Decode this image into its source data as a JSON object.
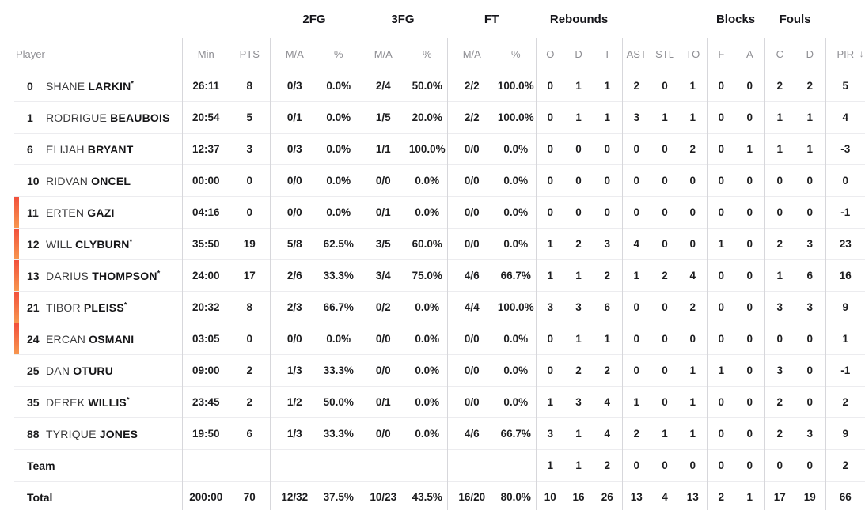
{
  "colors": {
    "accent_top": "#f2503c",
    "accent_bottom": "#f7974f",
    "divider": "#d7d7db",
    "row_line": "#ececef"
  },
  "header": {
    "groups": [
      {
        "label": "",
        "span": 3
      },
      {
        "label": "2FG",
        "span": 2
      },
      {
        "label": "3FG",
        "span": 2
      },
      {
        "label": "FT",
        "span": 2
      },
      {
        "label": "Rebounds",
        "span": 3
      },
      {
        "label": "",
        "span": 3
      },
      {
        "label": "Blocks",
        "span": 2
      },
      {
        "label": "Fouls",
        "span": 2
      },
      {
        "label": "",
        "span": 1
      }
    ],
    "sub": {
      "player": "Player",
      "min": "Min",
      "pts": "PTS",
      "fg2_ma": "M/A",
      "fg2_pct": "%",
      "fg3_ma": "M/A",
      "fg3_pct": "%",
      "ft_ma": "M/A",
      "ft_pct": "%",
      "reb_o": "O",
      "reb_d": "D",
      "reb_t": "T",
      "ast": "AST",
      "stl": "STL",
      "to": "TO",
      "blk_f": "F",
      "blk_a": "A",
      "foul_c": "C",
      "foul_d": "D",
      "pir": "PIR"
    },
    "sort_icon": "↓"
  },
  "rows": [
    {
      "type": "player",
      "num": "0",
      "first": "SHANE",
      "last": "LARKIN",
      "starter": true,
      "oncourt": false,
      "min": "26:11",
      "pts": "8",
      "fg2": "0/3",
      "fg2p": "0.0%",
      "fg3": "2/4",
      "fg3p": "50.0%",
      "ft": "2/2",
      "ftp": "100.0%",
      "ro": "0",
      "rd": "1",
      "rt": "1",
      "ast": "2",
      "stl": "0",
      "to": "1",
      "bf": "0",
      "ba": "0",
      "fc": "2",
      "fd": "2",
      "pir": "5"
    },
    {
      "type": "player",
      "num": "1",
      "first": "RODRIGUE",
      "last": "BEAUBOIS",
      "starter": false,
      "oncourt": false,
      "min": "20:54",
      "pts": "5",
      "fg2": "0/1",
      "fg2p": "0.0%",
      "fg3": "1/5",
      "fg3p": "20.0%",
      "ft": "2/2",
      "ftp": "100.0%",
      "ro": "0",
      "rd": "1",
      "rt": "1",
      "ast": "3",
      "stl": "1",
      "to": "1",
      "bf": "0",
      "ba": "0",
      "fc": "1",
      "fd": "1",
      "pir": "4"
    },
    {
      "type": "player",
      "num": "6",
      "first": "ELIJAH",
      "last": "BRYANT",
      "starter": false,
      "oncourt": false,
      "min": "12:37",
      "pts": "3",
      "fg2": "0/3",
      "fg2p": "0.0%",
      "fg3": "1/1",
      "fg3p": "100.0%",
      "ft": "0/0",
      "ftp": "0.0%",
      "ro": "0",
      "rd": "0",
      "rt": "0",
      "ast": "0",
      "stl": "0",
      "to": "2",
      "bf": "0",
      "ba": "1",
      "fc": "1",
      "fd": "1",
      "pir": "-3"
    },
    {
      "type": "player",
      "num": "10",
      "first": "RIDVAN",
      "last": "ONCEL",
      "starter": false,
      "oncourt": false,
      "min": "00:00",
      "pts": "0",
      "fg2": "0/0",
      "fg2p": "0.0%",
      "fg3": "0/0",
      "fg3p": "0.0%",
      "ft": "0/0",
      "ftp": "0.0%",
      "ro": "0",
      "rd": "0",
      "rt": "0",
      "ast": "0",
      "stl": "0",
      "to": "0",
      "bf": "0",
      "ba": "0",
      "fc": "0",
      "fd": "0",
      "pir": "0"
    },
    {
      "type": "player",
      "num": "11",
      "first": "ERTEN",
      "last": "GAZI",
      "starter": false,
      "oncourt": true,
      "min": "04:16",
      "pts": "0",
      "fg2": "0/0",
      "fg2p": "0.0%",
      "fg3": "0/1",
      "fg3p": "0.0%",
      "ft": "0/0",
      "ftp": "0.0%",
      "ro": "0",
      "rd": "0",
      "rt": "0",
      "ast": "0",
      "stl": "0",
      "to": "0",
      "bf": "0",
      "ba": "0",
      "fc": "0",
      "fd": "0",
      "pir": "-1"
    },
    {
      "type": "player",
      "num": "12",
      "first": "WILL",
      "last": "CLYBURN",
      "starter": true,
      "oncourt": true,
      "min": "35:50",
      "pts": "19",
      "fg2": "5/8",
      "fg2p": "62.5%",
      "fg3": "3/5",
      "fg3p": "60.0%",
      "ft": "0/0",
      "ftp": "0.0%",
      "ro": "1",
      "rd": "2",
      "rt": "3",
      "ast": "4",
      "stl": "0",
      "to": "0",
      "bf": "1",
      "ba": "0",
      "fc": "2",
      "fd": "3",
      "pir": "23"
    },
    {
      "type": "player",
      "num": "13",
      "first": "DARIUS",
      "last": "THOMPSON",
      "starter": true,
      "oncourt": true,
      "min": "24:00",
      "pts": "17",
      "fg2": "2/6",
      "fg2p": "33.3%",
      "fg3": "3/4",
      "fg3p": "75.0%",
      "ft": "4/6",
      "ftp": "66.7%",
      "ro": "1",
      "rd": "1",
      "rt": "2",
      "ast": "1",
      "stl": "2",
      "to": "4",
      "bf": "0",
      "ba": "0",
      "fc": "1",
      "fd": "6",
      "pir": "16"
    },
    {
      "type": "player",
      "num": "21",
      "first": "TIBOR",
      "last": "PLEISS",
      "starter": true,
      "oncourt": true,
      "min": "20:32",
      "pts": "8",
      "fg2": "2/3",
      "fg2p": "66.7%",
      "fg3": "0/2",
      "fg3p": "0.0%",
      "ft": "4/4",
      "ftp": "100.0%",
      "ro": "3",
      "rd": "3",
      "rt": "6",
      "ast": "0",
      "stl": "0",
      "to": "2",
      "bf": "0",
      "ba": "0",
      "fc": "3",
      "fd": "3",
      "pir": "9"
    },
    {
      "type": "player",
      "num": "24",
      "first": "ERCAN",
      "last": "OSMANI",
      "starter": false,
      "oncourt": true,
      "min": "03:05",
      "pts": "0",
      "fg2": "0/0",
      "fg2p": "0.0%",
      "fg3": "0/0",
      "fg3p": "0.0%",
      "ft": "0/0",
      "ftp": "0.0%",
      "ro": "0",
      "rd": "1",
      "rt": "1",
      "ast": "0",
      "stl": "0",
      "to": "0",
      "bf": "0",
      "ba": "0",
      "fc": "0",
      "fd": "0",
      "pir": "1"
    },
    {
      "type": "player",
      "num": "25",
      "first": "DAN",
      "last": "OTURU",
      "starter": false,
      "oncourt": false,
      "min": "09:00",
      "pts": "2",
      "fg2": "1/3",
      "fg2p": "33.3%",
      "fg3": "0/0",
      "fg3p": "0.0%",
      "ft": "0/0",
      "ftp": "0.0%",
      "ro": "0",
      "rd": "2",
      "rt": "2",
      "ast": "0",
      "stl": "0",
      "to": "1",
      "bf": "1",
      "ba": "0",
      "fc": "3",
      "fd": "0",
      "pir": "-1"
    },
    {
      "type": "player",
      "num": "35",
      "first": "DEREK",
      "last": "WILLIS",
      "starter": true,
      "oncourt": false,
      "min": "23:45",
      "pts": "2",
      "fg2": "1/2",
      "fg2p": "50.0%",
      "fg3": "0/1",
      "fg3p": "0.0%",
      "ft": "0/0",
      "ftp": "0.0%",
      "ro": "1",
      "rd": "3",
      "rt": "4",
      "ast": "1",
      "stl": "0",
      "to": "1",
      "bf": "0",
      "ba": "0",
      "fc": "2",
      "fd": "0",
      "pir": "2"
    },
    {
      "type": "player",
      "num": "88",
      "first": "TYRIQUE",
      "last": "JONES",
      "starter": false,
      "oncourt": false,
      "min": "19:50",
      "pts": "6",
      "fg2": "1/3",
      "fg2p": "33.3%",
      "fg3": "0/0",
      "fg3p": "0.0%",
      "ft": "4/6",
      "ftp": "66.7%",
      "ro": "3",
      "rd": "1",
      "rt": "4",
      "ast": "2",
      "stl": "1",
      "to": "1",
      "bf": "0",
      "ba": "0",
      "fc": "2",
      "fd": "3",
      "pir": "9"
    },
    {
      "type": "team",
      "label": "Team",
      "ro": "1",
      "rd": "1",
      "rt": "2",
      "ast": "0",
      "stl": "0",
      "to": "0",
      "bf": "0",
      "ba": "0",
      "fc": "0",
      "fd": "0",
      "pir": "2"
    },
    {
      "type": "total",
      "label": "Total",
      "min": "200:00",
      "pts": "70",
      "fg2": "12/32",
      "fg2p": "37.5%",
      "fg3": "10/23",
      "fg3p": "43.5%",
      "ft": "16/20",
      "ftp": "80.0%",
      "ro": "10",
      "rd": "16",
      "rt": "26",
      "ast": "13",
      "stl": "4",
      "to": "13",
      "bf": "2",
      "ba": "1",
      "fc": "17",
      "fd": "19",
      "pir": "66"
    }
  ]
}
